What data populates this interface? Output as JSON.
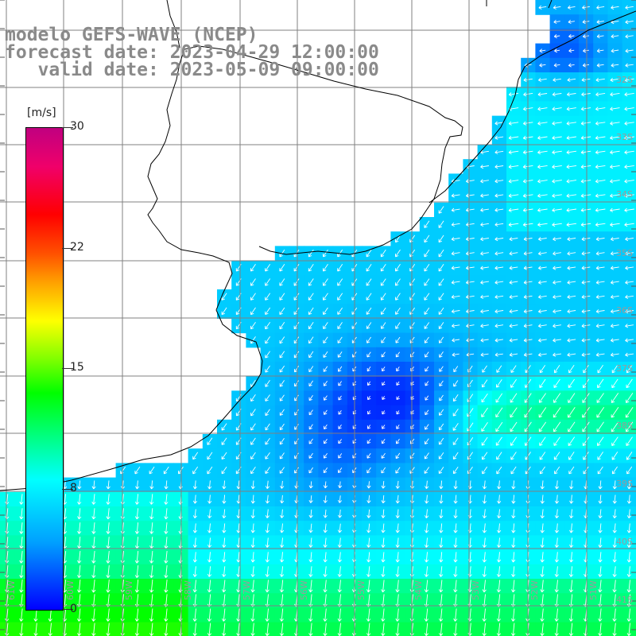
{
  "title": {
    "line1": "modelo GEFS-WAVE (NCEP)",
    "line2": "forecast date: 2023-04-29 12:00:00",
    "line3": "   valid date: 2023-05-09 09:00:00"
  },
  "colorbar": {
    "unit": "[m/s]",
    "ticks": [
      "30",
      "22",
      "15",
      "8",
      "0"
    ]
  },
  "lat_labels": [
    "32S",
    "33S",
    "34S",
    "35S",
    "36S",
    "37S",
    "38S",
    "39S",
    "40S",
    "41S"
  ],
  "lon_labels": [
    "61W",
    "60W",
    "59W",
    "58W",
    "57W",
    "56W",
    "55W",
    "54W",
    "53W",
    "52W",
    "51W"
  ],
  "colors": {
    "land": "#ffffff",
    "coast": "#000000",
    "grid": "#808080",
    "title": "#8a8a8a",
    "arrows": "#ffffff"
  },
  "wind_field": {
    "cmap_stops": [
      [
        "#0000ff",
        0
      ],
      [
        "#00a0ff",
        4.2
      ],
      [
        "#00ffff",
        8.1
      ],
      [
        "#00ff80",
        10.8
      ],
      [
        "#00ff00",
        13.5
      ],
      [
        "#ffff00",
        18
      ],
      [
        "#ff0000",
        24.6
      ],
      [
        "#c00080",
        30
      ]
    ]
  }
}
